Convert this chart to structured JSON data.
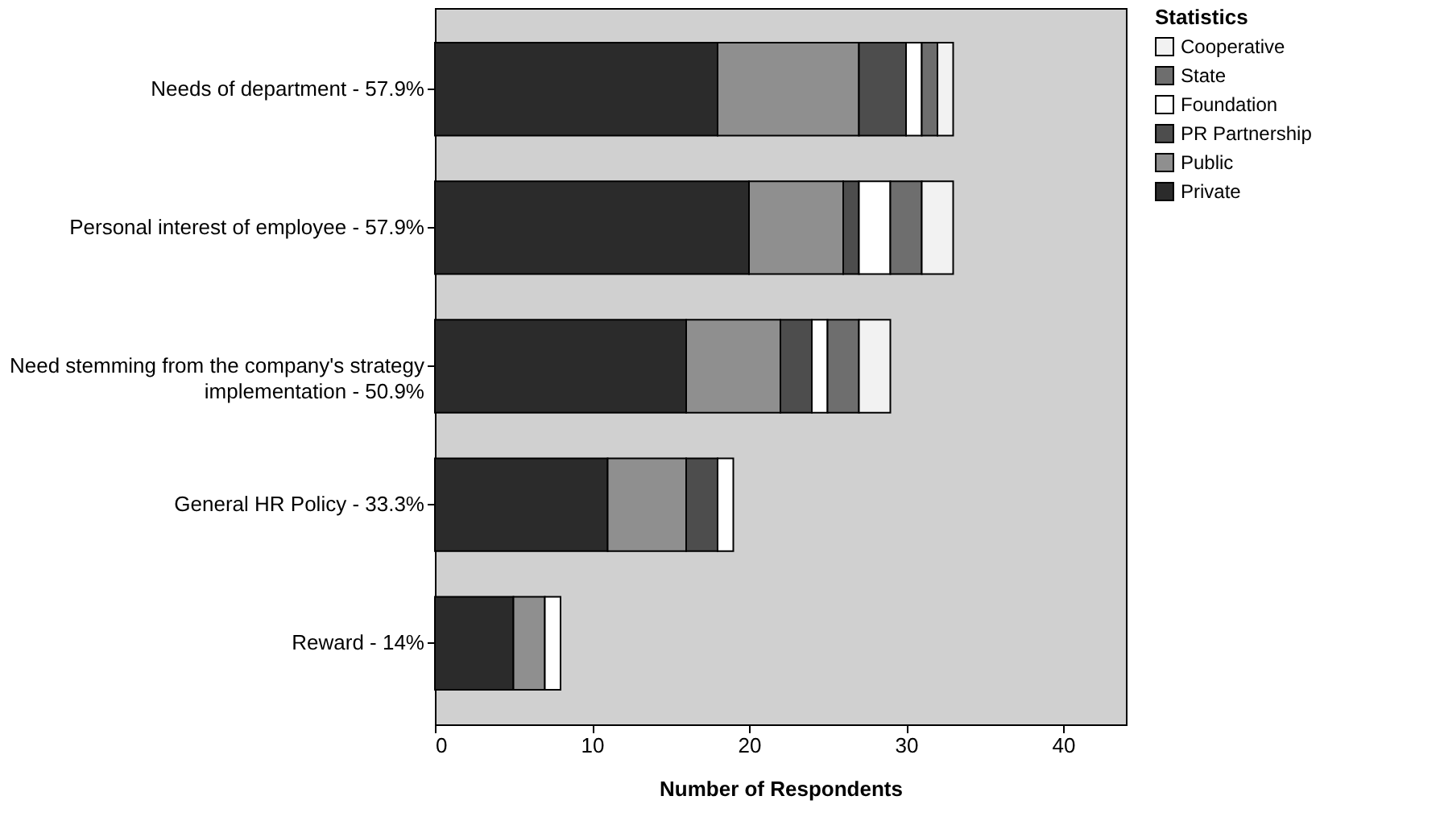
{
  "chart_data": {
    "type": "bar",
    "orientation": "horizontal",
    "stacked": true,
    "categories": [
      "Needs of department - 57.9%",
      "Personal interest of employee - 57.9%",
      "Need stemming from the company's strategy implementation - 50.9%",
      "General HR Policy - 33.3%",
      "Reward - 14%"
    ],
    "series": [
      {
        "name": "Private",
        "color": "#2b2b2b",
        "values": [
          18,
          20,
          16,
          11,
          5
        ]
      },
      {
        "name": "Public",
        "color": "#8f8f8f",
        "values": [
          9,
          6,
          6,
          5,
          2
        ]
      },
      {
        "name": "PR Partnership",
        "color": "#4d4d4d",
        "values": [
          3,
          1,
          2,
          2,
          null
        ]
      },
      {
        "name": "Foundation",
        "color": "#ffffff",
        "values": [
          1,
          2,
          1,
          1,
          1
        ]
      },
      {
        "name": "State",
        "color": "#6e6e6e",
        "values": [
          1,
          2,
          2,
          null,
          null
        ]
      },
      {
        "name": "Cooperative",
        "color": "#f2f2f2",
        "values": [
          1,
          2,
          2,
          null,
          null
        ]
      }
    ],
    "xlabel": "Number of Respondents",
    "legend_title": "Statistics",
    "legend": "top right",
    "xlim": [
      0,
      44
    ],
    "xticks": [
      0,
      10,
      20,
      30,
      40
    ],
    "grid": false
  }
}
